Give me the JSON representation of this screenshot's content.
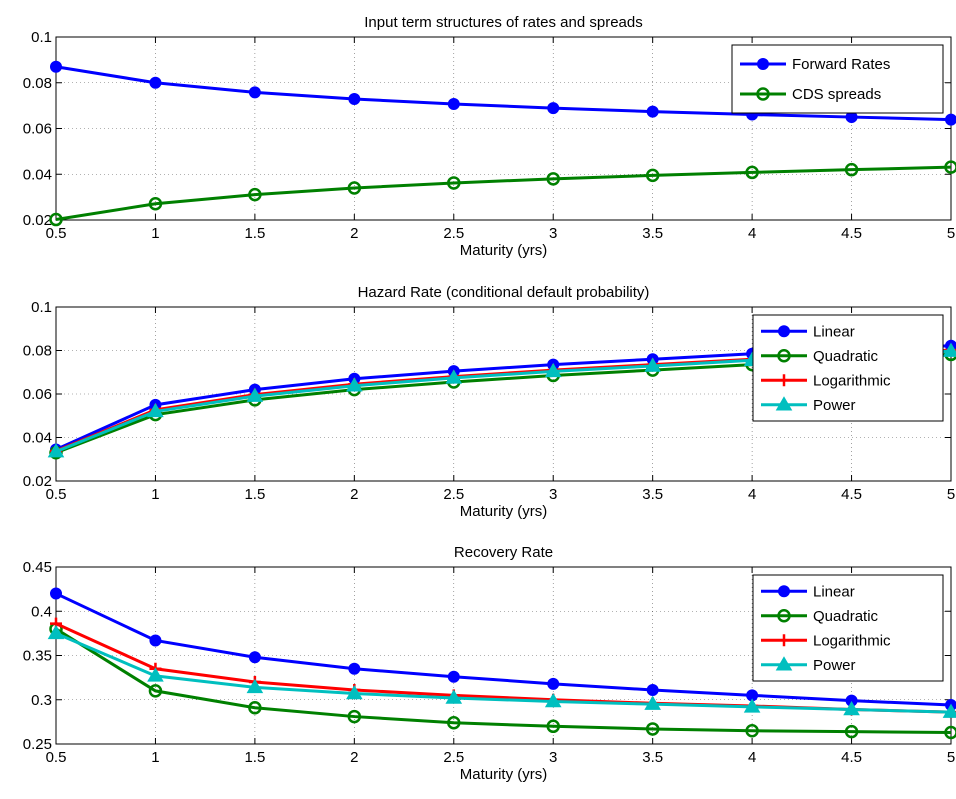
{
  "chart_data": [
    {
      "type": "line",
      "title": "Input term structures of rates and spreads",
      "xlabel": "Maturity (yrs)",
      "ylabel": "",
      "xlim": [
        0.5,
        5
      ],
      "ylim": [
        0.02,
        0.1
      ],
      "xticks": [
        "0.5",
        "1",
        "1.5",
        "2",
        "2.5",
        "3",
        "3.5",
        "4",
        "4.5",
        "5"
      ],
      "yticks": [
        "0.02",
        "0.04",
        "0.06",
        "0.08",
        "0.1"
      ],
      "grid": true,
      "legend_position": "top-right",
      "x": [
        0.5,
        1,
        1.5,
        2,
        2.5,
        3,
        3.5,
        4,
        4.5,
        5
      ],
      "series": [
        {
          "name": "Forward Rates",
          "color": "#0000ff",
          "marker": "filled-circle",
          "values": [
            0.087,
            0.08,
            0.0758,
            0.0729,
            0.0707,
            0.0689,
            0.0674,
            0.0661,
            0.065,
            0.0639
          ]
        },
        {
          "name": "CDS spreads",
          "color": "#008000",
          "marker": "open-circle",
          "values": [
            0.0202,
            0.0271,
            0.0311,
            0.034,
            0.0362,
            0.038,
            0.0395,
            0.0408,
            0.042,
            0.0431
          ]
        }
      ]
    },
    {
      "type": "line",
      "title": "Hazard Rate (conditional default probability)",
      "xlabel": "Maturity (yrs)",
      "ylabel": "",
      "xlim": [
        0.5,
        5
      ],
      "ylim": [
        0.02,
        0.1
      ],
      "xticks": [
        "0.5",
        "1",
        "1.5",
        "2",
        "2.5",
        "3",
        "3.5",
        "4",
        "4.5",
        "5"
      ],
      "yticks": [
        "0.02",
        "0.04",
        "0.06",
        "0.08",
        "0.1"
      ],
      "grid": true,
      "legend_position": "top-right",
      "x": [
        0.5,
        1,
        1.5,
        2,
        2.5,
        3,
        3.5,
        4,
        4.5,
        5
      ],
      "series": [
        {
          "name": "Linear",
          "color": "#0000ff",
          "marker": "filled-circle",
          "values": [
            0.0345,
            0.055,
            0.062,
            0.067,
            0.0705,
            0.0735,
            0.076,
            0.0785,
            0.0805,
            0.0822
          ]
        },
        {
          "name": "Quadratic",
          "color": "#008000",
          "marker": "open-circle",
          "values": [
            0.033,
            0.0505,
            0.0573,
            0.062,
            0.0655,
            0.0685,
            0.071,
            0.0735,
            0.076,
            0.0782
          ]
        },
        {
          "name": "Logarithmic",
          "color": "#ff0000",
          "marker": "plus",
          "values": [
            0.0338,
            0.0527,
            0.0597,
            0.0645,
            0.068,
            0.071,
            0.0735,
            0.076,
            0.0782,
            0.0802
          ]
        },
        {
          "name": "Power",
          "color": "#00bfbf",
          "marker": "triangle",
          "values": [
            0.0335,
            0.052,
            0.059,
            0.0638,
            0.0674,
            0.0704,
            0.0729,
            0.0755,
            0.0777,
            0.0797
          ]
        }
      ]
    },
    {
      "type": "line",
      "title": "Recovery Rate",
      "xlabel": "Maturity (yrs)",
      "ylabel": "",
      "xlim": [
        0.5,
        5
      ],
      "ylim": [
        0.25,
        0.45
      ],
      "xticks": [
        "0.5",
        "1",
        "1.5",
        "2",
        "2.5",
        "3",
        "3.5",
        "4",
        "4.5",
        "5"
      ],
      "yticks": [
        "0.25",
        "0.3",
        "0.35",
        "0.4",
        "0.45"
      ],
      "grid": true,
      "legend_position": "top-right",
      "x": [
        0.5,
        1,
        1.5,
        2,
        2.5,
        3,
        3.5,
        4,
        4.5,
        5
      ],
      "series": [
        {
          "name": "Linear",
          "color": "#0000ff",
          "marker": "filled-circle",
          "values": [
            0.42,
            0.367,
            0.348,
            0.335,
            0.326,
            0.318,
            0.311,
            0.305,
            0.299,
            0.294
          ]
        },
        {
          "name": "Quadratic",
          "color": "#008000",
          "marker": "open-circle",
          "values": [
            0.38,
            0.31,
            0.291,
            0.281,
            0.274,
            0.27,
            0.267,
            0.265,
            0.264,
            0.263
          ]
        },
        {
          "name": "Logarithmic",
          "color": "#ff0000",
          "marker": "plus",
          "values": [
            0.386,
            0.335,
            0.32,
            0.311,
            0.305,
            0.3,
            0.296,
            0.293,
            0.289,
            0.286
          ]
        },
        {
          "name": "Power",
          "color": "#00bfbf",
          "marker": "triangle",
          "values": [
            0.375,
            0.327,
            0.314,
            0.307,
            0.302,
            0.298,
            0.295,
            0.292,
            0.289,
            0.286
          ]
        }
      ]
    }
  ]
}
